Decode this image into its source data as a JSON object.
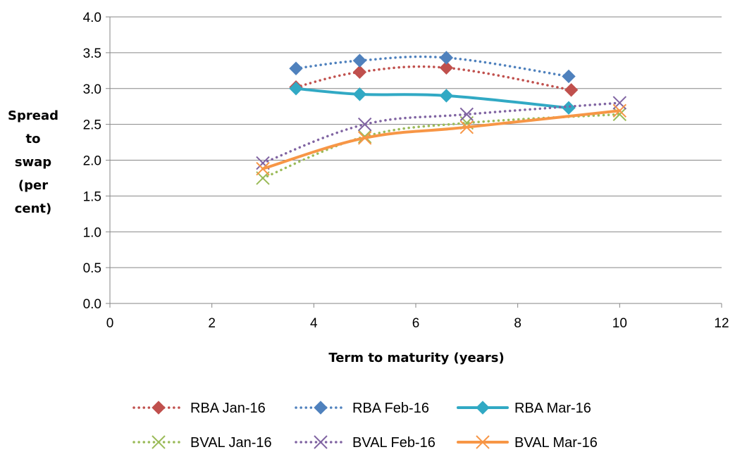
{
  "chart_data": {
    "type": "line",
    "title": "",
    "xlabel": "Term to maturity (years)",
    "ylabel": [
      "Spread",
      "to",
      "swap",
      "(per",
      "cent)"
    ],
    "xlim": [
      0,
      12
    ],
    "ylim": [
      0,
      4
    ],
    "x_ticks": [
      "0",
      "2",
      "4",
      "6",
      "8",
      "10",
      "12"
    ],
    "y_ticks": [
      "0.0",
      "0.5",
      "1.0",
      "1.5",
      "2.0",
      "2.5",
      "3.0",
      "3.5",
      "4.0"
    ],
    "grid": "horizontal",
    "legend_position": "bottom",
    "series": [
      {
        "name": "RBA Jan-16",
        "color": "#c0504d",
        "dash": "dotted",
        "marker": "diamond",
        "x": [
          3.65,
          4.9,
          6.6,
          9.05
        ],
        "y": [
          3.02,
          3.23,
          3.29,
          2.98
        ]
      },
      {
        "name": "RBA Feb-16",
        "color": "#4f81bd",
        "dash": "dotted",
        "marker": "diamond",
        "x": [
          3.65,
          4.9,
          6.6,
          9.0
        ],
        "y": [
          3.28,
          3.39,
          3.43,
          3.17
        ]
      },
      {
        "name": "RBA Mar-16",
        "color": "#31a9c4",
        "dash": "solid",
        "marker": "diamond",
        "x": [
          3.65,
          4.9,
          6.6,
          9.0
        ],
        "y": [
          3.0,
          2.92,
          2.9,
          2.73
        ]
      },
      {
        "name": "BVAL Jan-16",
        "color": "#9bbb59",
        "dash": "dotted",
        "marker": "x",
        "x": [
          3,
          5,
          7,
          10
        ],
        "y": [
          1.75,
          2.33,
          2.52,
          2.64
        ]
      },
      {
        "name": "BVAL Feb-16",
        "color": "#8064a2",
        "dash": "dotted",
        "marker": "x",
        "x": [
          3,
          5,
          7,
          10
        ],
        "y": [
          1.96,
          2.5,
          2.64,
          2.8
        ]
      },
      {
        "name": "BVAL Mar-16",
        "color": "#f79646",
        "dash": "solid",
        "marker": "x",
        "x": [
          3,
          5,
          7,
          10
        ],
        "y": [
          1.88,
          2.31,
          2.46,
          2.69
        ]
      }
    ]
  }
}
